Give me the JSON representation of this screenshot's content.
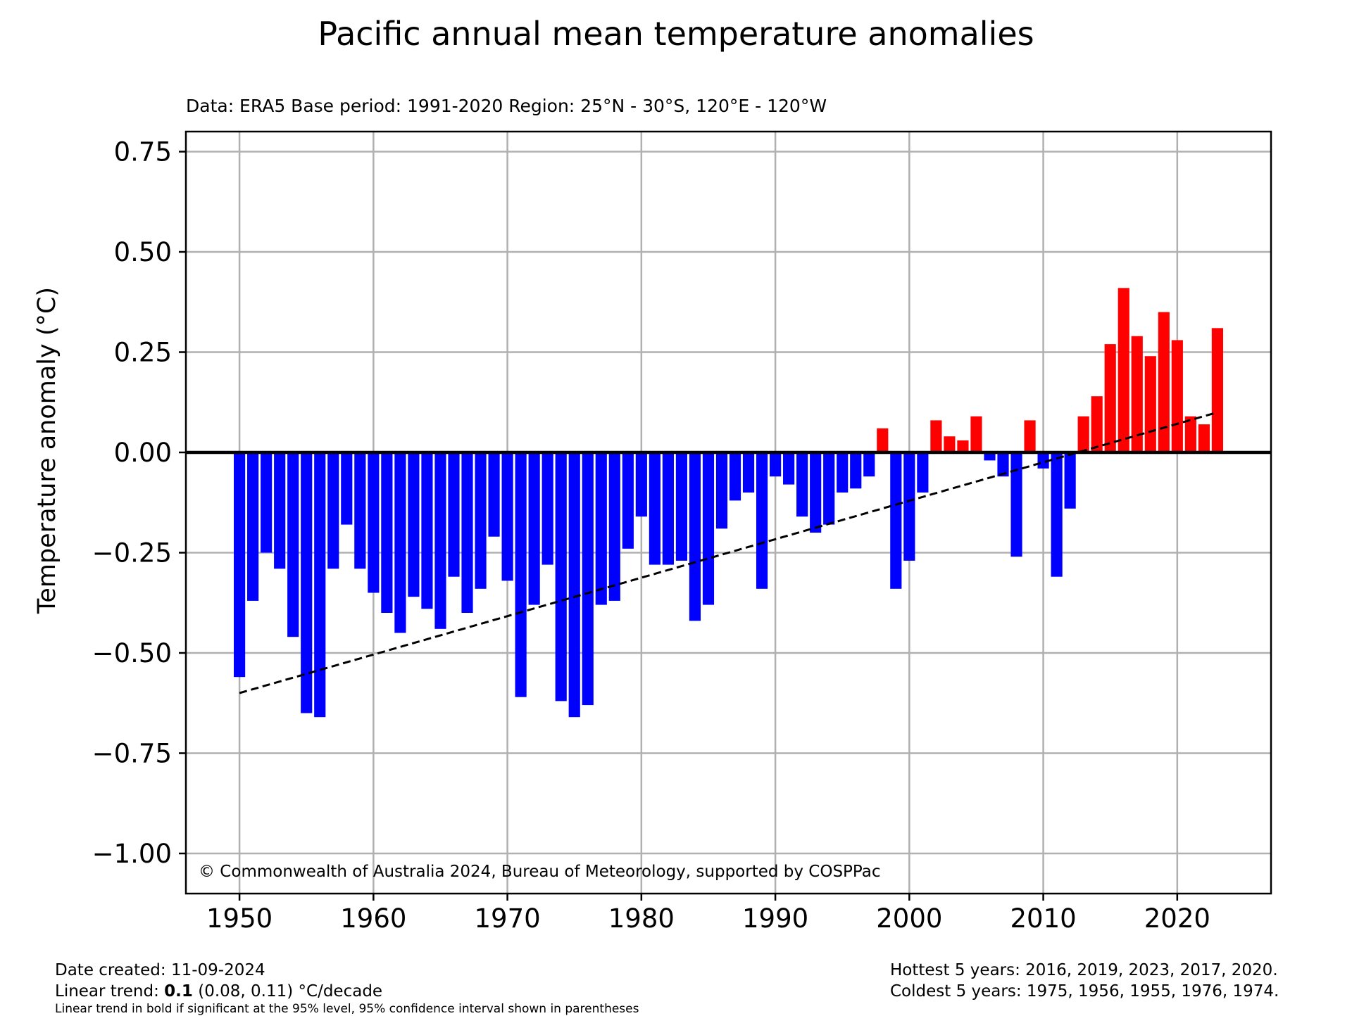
{
  "chart_data": {
    "type": "bar",
    "title": "Pacific annual mean temperature anomalies",
    "subtitle": "Data: ERA5  Base period: 1991-2020  Region: 25°N - 30°S, 120°E - 120°W",
    "ylabel": "Temperature anomaly (°C)",
    "xlabel": "",
    "xlim": [
      1946,
      2027
    ],
    "ylim": [
      -1.1,
      0.8
    ],
    "grid": true,
    "x_ticks": [
      1950,
      1960,
      1970,
      1980,
      1990,
      2000,
      2010,
      2020
    ],
    "x_tick_labels": [
      "1950",
      "1960",
      "1970",
      "1980",
      "1990",
      "2000",
      "2010",
      "2020"
    ],
    "y_ticks": [
      0.75,
      0.5,
      0.25,
      0.0,
      -0.25,
      -0.5,
      -0.75,
      -1.0
    ],
    "y_tick_labels": [
      "0.75",
      "0.50",
      "0.25",
      "0.00",
      "−0.25",
      "−0.50",
      "−0.75",
      "−1.00"
    ],
    "colors": {
      "positive": "#ff0000",
      "negative": "#0000ff",
      "trend": "#000000",
      "grid": "#b0b0b0"
    },
    "years": [
      1950,
      1951,
      1952,
      1953,
      1954,
      1955,
      1956,
      1957,
      1958,
      1959,
      1960,
      1961,
      1962,
      1963,
      1964,
      1965,
      1966,
      1967,
      1968,
      1969,
      1970,
      1971,
      1972,
      1973,
      1974,
      1975,
      1976,
      1977,
      1978,
      1979,
      1980,
      1981,
      1982,
      1983,
      1984,
      1985,
      1986,
      1987,
      1988,
      1989,
      1990,
      1991,
      1992,
      1993,
      1994,
      1995,
      1996,
      1997,
      1998,
      1999,
      2000,
      2001,
      2002,
      2003,
      2004,
      2005,
      2006,
      2007,
      2008,
      2009,
      2010,
      2011,
      2012,
      2013,
      2014,
      2015,
      2016,
      2017,
      2018,
      2019,
      2020,
      2021,
      2022,
      2023
    ],
    "values": [
      -0.56,
      -0.37,
      -0.25,
      -0.29,
      -0.46,
      -0.65,
      -0.66,
      -0.29,
      -0.18,
      -0.29,
      -0.35,
      -0.4,
      -0.45,
      -0.36,
      -0.39,
      -0.44,
      -0.31,
      -0.4,
      -0.34,
      -0.21,
      -0.32,
      -0.61,
      -0.38,
      -0.28,
      -0.62,
      -0.66,
      -0.63,
      -0.38,
      -0.37,
      -0.24,
      -0.16,
      -0.28,
      -0.28,
      -0.27,
      -0.42,
      -0.38,
      -0.19,
      -0.12,
      -0.1,
      -0.34,
      -0.06,
      -0.08,
      -0.16,
      -0.2,
      -0.18,
      -0.1,
      -0.09,
      -0.06,
      0.06,
      -0.34,
      -0.27,
      -0.1,
      0.08,
      0.04,
      0.03,
      0.09,
      -0.02,
      -0.06,
      -0.26,
      0.08,
      -0.04,
      -0.31,
      -0.14,
      0.09,
      0.14,
      0.27,
      0.41,
      0.29,
      0.24,
      0.35,
      0.28,
      0.09,
      0.07,
      0.31
    ],
    "trend_line": {
      "x": [
        1950,
        2023
      ],
      "y": [
        -0.6,
        0.1
      ]
    },
    "annotation": "© Commonwealth of Australia 2024, Bureau of Meteorology, supported by COSPPac"
  },
  "footer": {
    "date_created": "Date created: 11-09-2024",
    "trend_prefix": "Linear trend: ",
    "trend_value": "0.1",
    "trend_suffix": " (0.08, 0.11) °C/decade",
    "trend_note": "Linear trend in bold if significant at the 95% level, 95% confidence interval shown in parentheses",
    "hottest": "Hottest 5 years: 2016, 2019, 2023, 2017, 2020.",
    "coldest": "Coldest 5 years: 1975, 1956, 1955, 1976, 1974."
  }
}
